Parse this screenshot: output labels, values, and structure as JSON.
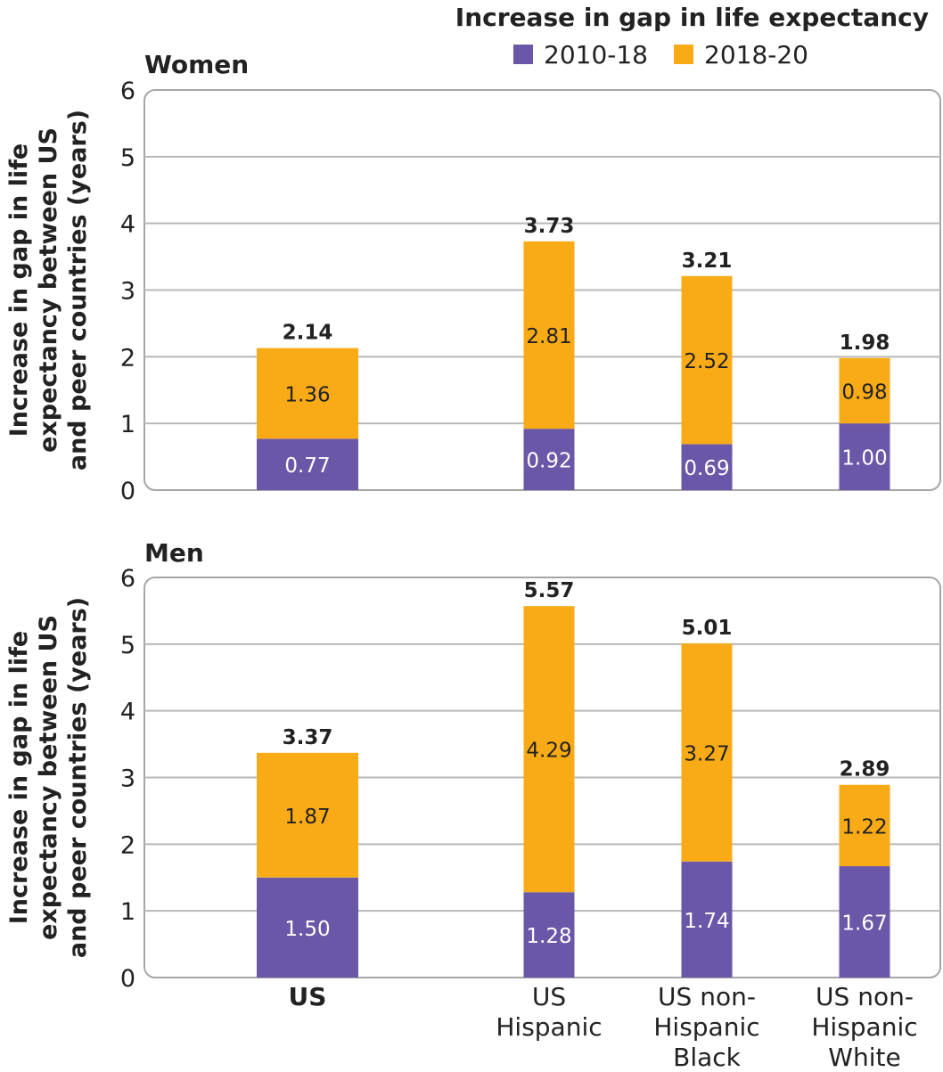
{
  "chart_data": {
    "type": "bar",
    "stacked": true,
    "legend": {
      "title": "Increase in gap in life expectancy",
      "placement": "top-right",
      "entries": [
        "2010-18",
        "2018-20"
      ]
    },
    "colors": {
      "2010-18": "#6b57a8",
      "2018-20": "#f9ab17",
      "gridline": "#b8b8b8",
      "frame": "#a6a6a6"
    },
    "categories": [
      "US",
      "US Hispanic",
      "US non-Hispanic Black",
      "US non-Hispanic White"
    ],
    "category_lines": [
      [
        "US"
      ],
      [
        "US",
        "Hispanic"
      ],
      [
        "US non-",
        "Hispanic",
        "Black"
      ],
      [
        "US non-",
        "Hispanic",
        "White"
      ]
    ],
    "ylabel_lines": [
      "Increase in gap in life",
      "expectancy between US",
      "and peer countries (years)"
    ],
    "ylim": [
      0,
      6
    ],
    "yticks": [
      "0",
      "1",
      "2",
      "3",
      "4",
      "5",
      "6"
    ],
    "grid": true,
    "panels": [
      {
        "title": "Women",
        "series": [
          {
            "name": "2010-18",
            "values": [
              0.77,
              0.92,
              0.69,
              1.0
            ],
            "labels": [
              "0.77",
              "0.92",
              "0.69",
              "1.00"
            ]
          },
          {
            "name": "2018-20",
            "values": [
              1.36,
              2.81,
              2.52,
              0.98
            ],
            "labels": [
              "1.36",
              "2.81",
              "2.52",
              "0.98"
            ]
          }
        ],
        "totals": [
          2.14,
          3.73,
          3.21,
          1.98
        ],
        "total_labels": [
          "2.14",
          "3.73",
          "3.21",
          "1.98"
        ]
      },
      {
        "title": "Men",
        "series": [
          {
            "name": "2010-18",
            "values": [
              1.5,
              1.28,
              1.74,
              1.67
            ],
            "labels": [
              "1.50",
              "1.28",
              "1.74",
              "1.67"
            ]
          },
          {
            "name": "2018-20",
            "values": [
              1.87,
              4.29,
              3.27,
              1.22
            ],
            "labels": [
              "1.87",
              "4.29",
              "3.27",
              "1.22"
            ]
          }
        ],
        "totals": [
          3.37,
          5.57,
          5.01,
          2.89
        ],
        "total_labels": [
          "3.37",
          "5.57",
          "5.01",
          "2.89"
        ]
      }
    ]
  }
}
